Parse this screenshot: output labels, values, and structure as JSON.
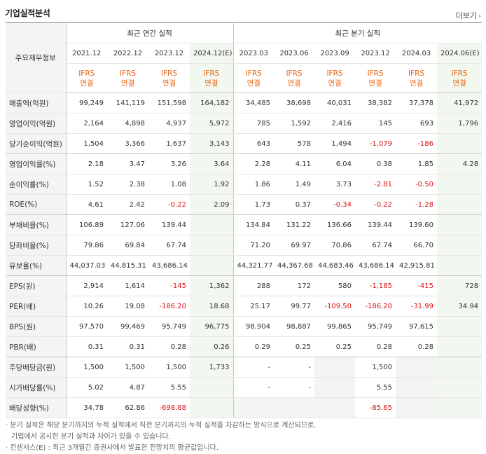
{
  "header": {
    "title": "기업실적분석",
    "more_label": "더보기",
    "more_icon": "chevron-right-icon"
  },
  "table": {
    "row_header_title": "주요재무정보",
    "annual_group": "최근 연간 실적",
    "quarter_group": "최근 분기 실적",
    "periods": [
      "2021.12",
      "2022.12",
      "2023.12",
      "2024.12(E)",
      "2023.03",
      "2023.06",
      "2023.09",
      "2023.12",
      "2024.03",
      "2024.06(E)"
    ],
    "standard_top": "IFRS",
    "standard_bottom": "연결",
    "rows": [
      {
        "label": "매출액(억원)",
        "values": [
          "99,249",
          "141,119",
          "151,598",
          "164,182",
          "34,485",
          "38,698",
          "40,031",
          "38,382",
          "37,378",
          "41,972"
        ]
      },
      {
        "label": "영업이익(억원)",
        "values": [
          "2,164",
          "4,898",
          "4,937",
          "5,972",
          "785",
          "1,592",
          "2,416",
          "145",
          "693",
          "1,796"
        ]
      },
      {
        "label": "당기순이익(억원)",
        "values": [
          "1,504",
          "3,366",
          "1,637",
          "3,143",
          "643",
          "578",
          "1,494",
          "-1,079",
          "-186",
          ""
        ]
      },
      {
        "label": "영업이익률(%)",
        "values": [
          "2.18",
          "3.47",
          "3.26",
          "3.64",
          "2.28",
          "4.11",
          "6.04",
          "0.38",
          "1.85",
          "4.28"
        ]
      },
      {
        "label": "순이익률(%)",
        "values": [
          "1.52",
          "2.38",
          "1.08",
          "1.92",
          "1.86",
          "1.49",
          "3.73",
          "-2.81",
          "-0.50",
          ""
        ]
      },
      {
        "label": "ROE(%)",
        "values": [
          "4.61",
          "2.42",
          "-0.22",
          "2.09",
          "1.73",
          "0.37",
          "-0.34",
          "-0.22",
          "-1.28",
          ""
        ]
      },
      {
        "label": "부채비율(%)",
        "values": [
          "106.89",
          "127.06",
          "139.44",
          "",
          "134.84",
          "131.22",
          "136.66",
          "139.44",
          "139.60",
          ""
        ]
      },
      {
        "label": "당좌비율(%)",
        "values": [
          "79.86",
          "69.84",
          "67.74",
          "",
          "71.20",
          "69.97",
          "70.86",
          "67.74",
          "66.70",
          ""
        ]
      },
      {
        "label": "유보율(%)",
        "values": [
          "44,037.03",
          "44,815.31",
          "43,686.14",
          "",
          "44,321.77",
          "44,367.68",
          "44,683.46",
          "43,686.14",
          "42,915.81",
          ""
        ]
      },
      {
        "label": "EPS(원)",
        "values": [
          "2,914",
          "1,614",
          "-145",
          "1,362",
          "288",
          "172",
          "580",
          "-1,185",
          "-415",
          "728"
        ]
      },
      {
        "label": "PER(배)",
        "values": [
          "10.26",
          "19.08",
          "-186.20",
          "18.68",
          "25.17",
          "99.77",
          "-109.50",
          "-186.20",
          "-31.99",
          "34.94"
        ]
      },
      {
        "label": "BPS(원)",
        "values": [
          "97,570",
          "99,469",
          "95,749",
          "96,775",
          "98,904",
          "98,887",
          "99,865",
          "95,749",
          "97,615",
          ""
        ]
      },
      {
        "label": "PBR(배)",
        "values": [
          "0.31",
          "0.31",
          "0.28",
          "0.26",
          "0.29",
          "0.25",
          "0.25",
          "0.28",
          "0.28",
          ""
        ]
      },
      {
        "label": "주당배당금(원)",
        "values": [
          "1,500",
          "1,500",
          "1,500",
          "1,733",
          "-",
          "-",
          "",
          "1,500",
          "",
          ""
        ]
      },
      {
        "label": "시가배당률(%)",
        "values": [
          "5.02",
          "4.87",
          "5.55",
          "",
          "-",
          "-",
          "",
          "5.55",
          "",
          ""
        ]
      },
      {
        "label": "배당성향(%)",
        "values": [
          "34.78",
          "62.86",
          "-698.88",
          "",
          "",
          "",
          "",
          "-85.65",
          "",
          ""
        ]
      }
    ]
  },
  "notes": {
    "line1": "· 분기 실적은 해당 분기까지의 누적 실적에서 직전 분기까지의 누적 실적을 차감하는 방식으로 계산되므로,",
    "line2": "기업에서 공시한 분기 실적과 차이가 있을 수 있습니다.",
    "line3_prefix": "· 컨센서스(",
    "line3_e": "E",
    "line3_suffix": ") : 최근 3개월간 증권사에서 발표한 전망치의 평균값입니다."
  }
}
